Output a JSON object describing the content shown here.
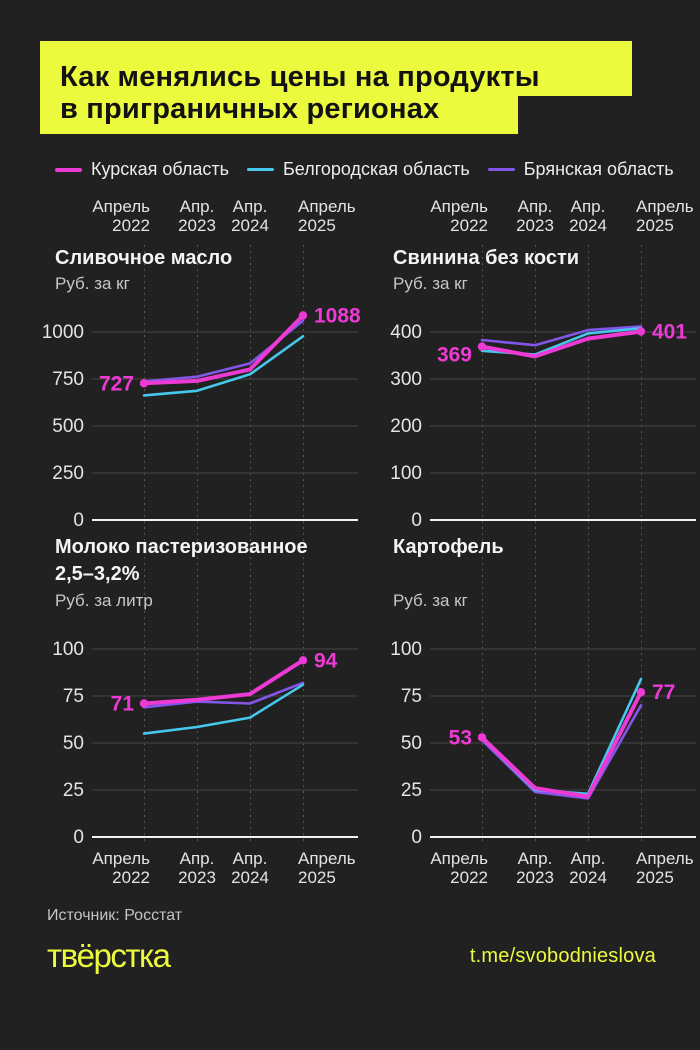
{
  "header": {
    "title_line1": "Как менялись цены на продукты",
    "title_line2": "в приграничных регионах",
    "bg_color": "#ECFA3E",
    "text_color": "#121212"
  },
  "legend": [
    {
      "label": "Курская область",
      "color": "#EE3AD4"
    },
    {
      "label": "Белгородская область",
      "color": "#45C8EC"
    },
    {
      "label": "Брянская область",
      "color": "#8156E8"
    }
  ],
  "x_axis": {
    "labels": [
      {
        "line1": "Апрель",
        "line2": "2022"
      },
      {
        "line1": "Апр.",
        "line2": "2023"
      },
      {
        "line1": "Апр.",
        "line2": "2024"
      },
      {
        "line1": "Апрель",
        "line2": "2025"
      }
    ]
  },
  "chart_data": [
    {
      "type": "line",
      "title_line1": "Сливочное масло",
      "title_line2": "",
      "unit": "Руб. за кг",
      "x": [
        "Апрель 2022",
        "Апр. 2023",
        "Апр. 2024",
        "Апрель 2025"
      ],
      "yticks": [
        1000,
        750,
        500,
        250,
        0
      ],
      "series": [
        {
          "name": "Курская область",
          "color": "#EE3AD4",
          "values": [
            727,
            740,
            801,
            1088
          ]
        },
        {
          "name": "Белгородская область",
          "color": "#45C8EC",
          "values": [
            663,
            687,
            775,
            977
          ]
        },
        {
          "name": "Брянская область",
          "color": "#8156E8",
          "values": [
            737,
            762,
            833,
            1060
          ]
        }
      ],
      "labels": {
        "start": "727",
        "end": "1088",
        "start_dy": 0
      }
    },
    {
      "type": "line",
      "title_line1": "Свинина без кости",
      "title_line2": "",
      "unit": "Руб. за кг",
      "x": [
        "Апрель 2022",
        "Апр. 2023",
        "Апр. 2024",
        "Апрель 2025"
      ],
      "yticks": [
        400,
        300,
        200,
        100,
        0
      ],
      "series": [
        {
          "name": "Курская область",
          "color": "#EE3AD4",
          "values": [
            369,
            348,
            386,
            401
          ]
        },
        {
          "name": "Белгородская область",
          "color": "#45C8EC",
          "values": [
            360,
            352,
            397,
            408
          ]
        },
        {
          "name": "Брянская область",
          "color": "#8156E8",
          "values": [
            383,
            372,
            404,
            412
          ]
        }
      ],
      "labels": {
        "start": "369",
        "end": "401",
        "start_dy": 8
      }
    },
    {
      "type": "line",
      "title_line1": "Молоко пастеризованное",
      "title_line2": "2,5–3,2%",
      "unit": "Руб. за литр",
      "x": [
        "Апрель 2022",
        "Апр. 2023",
        "Апр. 2024",
        "Апрель 2025"
      ],
      "yticks": [
        100,
        75,
        50,
        25,
        0
      ],
      "series": [
        {
          "name": "Курская область",
          "color": "#EE3AD4",
          "values": [
            71,
            73,
            76,
            94
          ]
        },
        {
          "name": "Белгородская область",
          "color": "#45C8EC",
          "values": [
            55,
            58.5,
            63.5,
            81
          ]
        },
        {
          "name": "Брянская область",
          "color": "#8156E8",
          "values": [
            69,
            72,
            71,
            82
          ]
        }
      ],
      "labels": {
        "start": "71",
        "end": "94",
        "start_dy": 0
      }
    },
    {
      "type": "line",
      "title_line1": "Картофель",
      "title_line2": "",
      "unit": "Руб. за кг",
      "x": [
        "Апрель 2022",
        "Апр. 2023",
        "Апр. 2024",
        "Апрель 2025"
      ],
      "yticks": [
        100,
        75,
        50,
        25,
        0
      ],
      "series": [
        {
          "name": "Курская область",
          "color": "#EE3AD4",
          "values": [
            53,
            26,
            21.5,
            77
          ]
        },
        {
          "name": "Белгородская область",
          "color": "#45C8EC",
          "values": [
            52.5,
            25,
            23,
            84
          ]
        },
        {
          "name": "Брянская область",
          "color": "#8156E8",
          "values": [
            51.5,
            24,
            20.5,
            70
          ]
        }
      ],
      "labels": {
        "start": "53",
        "end": "77",
        "start_dy": 0
      }
    }
  ],
  "footer": {
    "source": "Источник: Росстат",
    "logo": "твёрстка",
    "link": "t.me/svobodnieslova",
    "accent_color": "#ECFA3E"
  }
}
